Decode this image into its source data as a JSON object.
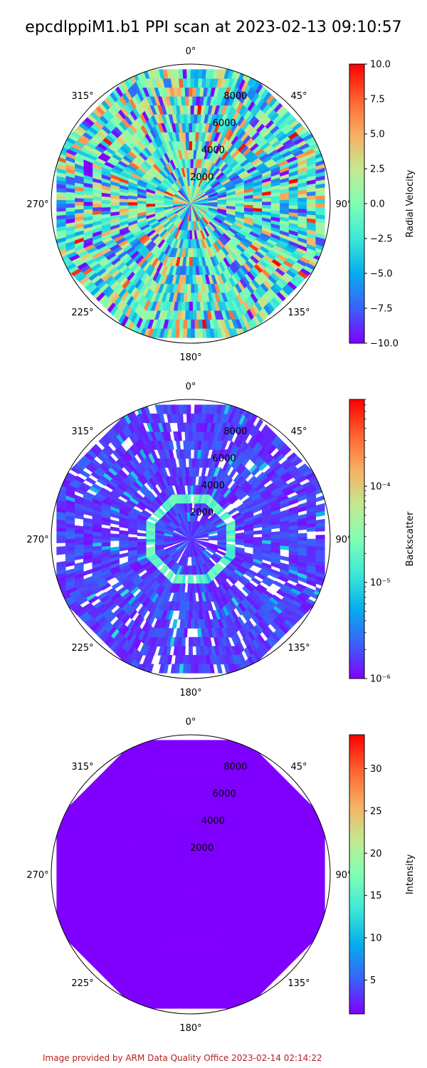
{
  "title": "epcdlppiM1.b1 PPI scan at 2023-02-13 09:10:57",
  "footer": "Image provided by ARM Data Quality Office 2023-02-14 02:14:22",
  "colormap": [
    "#8000ff",
    "#3a61fb",
    "#06aeed",
    "#3ce9d7",
    "#80ffb4",
    "#c4e98e",
    "#f9ae62",
    "#ff6130",
    "#ff0000"
  ],
  "polar_labels": {
    "angle_ticks": [
      "0°",
      "45°",
      "90°",
      "135°",
      "180°",
      "225°",
      "270°",
      "315°"
    ],
    "range_ticks": [
      "2000",
      "4000",
      "6000",
      "8000"
    ]
  },
  "chart_data": [
    {
      "type": "heatmap",
      "projection": "polar",
      "theta_direction": "clockwise",
      "theta_zero": "north",
      "range_ticks": [
        2000,
        4000,
        6000,
        8000
      ],
      "range_max": 10500,
      "sector_count": 8,
      "rings": [
        4,
        6,
        8,
        10,
        12,
        14,
        16,
        18,
        20,
        22,
        24,
        26,
        28,
        30
      ],
      "colorbar": {
        "label": "Radial Velocity",
        "scale": "linear",
        "range": [
          -10.0,
          10.0
        ],
        "ticks": [
          -10.0,
          -7.5,
          -5.0,
          -2.5,
          0.0,
          2.5,
          5.0,
          7.5,
          10.0
        ],
        "tick_labels": [
          "−10.0",
          "−7.5",
          "−5.0",
          "−2.5",
          "0.0",
          "2.5",
          "5.0",
          "7.5",
          "10.0"
        ]
      },
      "pattern": "noisy",
      "field_range": [
        -10,
        10
      ],
      "field_mean": -1.5,
      "field_spread": 6.5,
      "missing_fraction": 0.0
    },
    {
      "type": "heatmap",
      "projection": "polar",
      "theta_direction": "clockwise",
      "theta_zero": "north",
      "range_ticks": [
        2000,
        4000,
        6000,
        8000
      ],
      "range_max": 10500,
      "sector_count": 8,
      "rings": [
        4,
        6,
        8,
        10,
        12,
        14,
        16,
        18,
        20,
        22,
        24,
        26,
        28,
        30
      ],
      "colorbar": {
        "label": "Backscatter",
        "scale": "log",
        "range": [
          1e-06,
          0.0008
        ],
        "ticks": [
          1e-06,
          1e-05,
          0.0001
        ],
        "tick_labels": [
          "10⁻⁶",
          "10⁻⁵",
          "10⁻⁴"
        ]
      },
      "pattern": "low_sparse",
      "field_range": [
        1e-06,
        0.0008
      ],
      "missing_fraction": 0.12,
      "highlight_ring": 3
    },
    {
      "type": "heatmap",
      "projection": "polar",
      "theta_direction": "clockwise",
      "theta_zero": "north",
      "range_ticks": [
        2000,
        4000,
        6000,
        8000
      ],
      "range_max": 10500,
      "sector_count": 8,
      "rings": [
        4,
        6,
        8,
        10,
        12,
        14,
        16,
        18,
        20,
        22,
        24,
        26,
        28,
        30
      ],
      "colorbar": {
        "label": "Intensity",
        "scale": "linear",
        "range": [
          1.0,
          34.0
        ],
        "ticks": [
          5,
          10,
          15,
          20,
          25,
          30
        ],
        "tick_labels": [
          "5",
          "10",
          "15",
          "20",
          "25",
          "30"
        ]
      },
      "pattern": "uniform",
      "field_range": [
        1,
        34
      ],
      "constant_value": 1.0,
      "missing_fraction": 0.0
    }
  ]
}
